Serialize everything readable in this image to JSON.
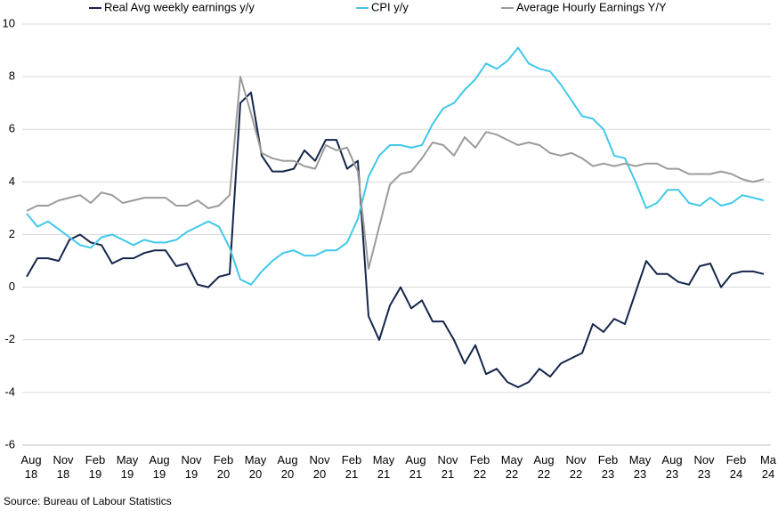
{
  "chart_data": {
    "type": "line",
    "categories": [
      "Aug 18",
      null,
      null,
      "Nov 18",
      null,
      null,
      "Feb 19",
      null,
      null,
      "May 19",
      null,
      null,
      "Aug 19",
      null,
      null,
      "Nov 19",
      null,
      null,
      "Feb 20",
      null,
      null,
      "May 20",
      null,
      null,
      "Aug 20",
      null,
      null,
      "Nov 20",
      null,
      null,
      "Feb 21",
      null,
      null,
      "May 21",
      null,
      null,
      "Aug 21",
      null,
      null,
      "Nov 21",
      null,
      null,
      "Feb 22",
      null,
      null,
      "May 22",
      null,
      null,
      "Aug 22",
      null,
      null,
      "Nov 22",
      null,
      null,
      "Feb 23",
      null,
      null,
      "May 23",
      null,
      null,
      "Aug 23",
      null,
      null,
      "Nov 23",
      null,
      null,
      "Feb 24",
      null,
      null,
      "Ma 24"
    ],
    "series": [
      {
        "name": "Real Avg weekly earnings y/y",
        "color": "#14264a",
        "values": [
          0.4,
          1.1,
          1.1,
          1.0,
          1.8,
          2.0,
          1.7,
          1.6,
          0.9,
          1.1,
          1.1,
          1.3,
          1.4,
          1.4,
          0.8,
          0.9,
          0.1,
          0.0,
          0.4,
          0.5,
          7.0,
          7.4,
          5.0,
          4.4,
          4.4,
          4.5,
          5.2,
          4.8,
          5.6,
          5.6,
          4.5,
          4.8,
          -1.1,
          -2.0,
          -0.7,
          0.0,
          -0.8,
          -0.5,
          -1.3,
          -1.3,
          -2.0,
          -2.9,
          -2.2,
          -3.3,
          -3.1,
          -3.6,
          -3.8,
          -3.6,
          -3.1,
          -3.4,
          -2.9,
          -2.7,
          -2.5,
          -1.4,
          -1.7,
          -1.2,
          -1.4,
          -0.2,
          1.0,
          0.5,
          0.5,
          0.2,
          0.1,
          0.8,
          0.9,
          0.0,
          0.5,
          0.6,
          0.6,
          0.5
        ]
      },
      {
        "name": "CPI y/y",
        "color": "#41c8ea",
        "values": [
          2.8,
          2.3,
          2.5,
          2.2,
          1.9,
          1.6,
          1.5,
          1.9,
          2.0,
          1.8,
          1.6,
          1.8,
          1.7,
          1.7,
          1.8,
          2.1,
          2.3,
          2.5,
          2.3,
          1.5,
          0.3,
          0.1,
          0.6,
          1.0,
          1.3,
          1.4,
          1.2,
          1.2,
          1.4,
          1.4,
          1.7,
          2.6,
          4.2,
          5.0,
          5.4,
          5.4,
          5.3,
          5.4,
          6.2,
          6.8,
          7.0,
          7.5,
          7.9,
          8.5,
          8.3,
          8.6,
          9.1,
          8.5,
          8.3,
          8.2,
          7.7,
          7.1,
          6.5,
          6.4,
          6.0,
          5.0,
          4.9,
          4.0,
          3.0,
          3.2,
          3.7,
          3.7,
          3.2,
          3.1,
          3.4,
          3.1,
          3.2,
          3.5,
          3.4,
          3.3
        ]
      },
      {
        "name": "Average Hourly Earnings Y/Y",
        "color": "#9b9b9b",
        "values": [
          2.9,
          3.1,
          3.1,
          3.3,
          3.4,
          3.5,
          3.2,
          3.6,
          3.5,
          3.2,
          3.3,
          3.4,
          3.4,
          3.4,
          3.1,
          3.1,
          3.3,
          3.0,
          3.1,
          3.5,
          8.0,
          6.6,
          5.1,
          4.9,
          4.8,
          4.8,
          4.6,
          4.5,
          5.4,
          5.2,
          5.3,
          4.4,
          0.7,
          2.3,
          3.9,
          4.3,
          4.4,
          4.9,
          5.5,
          5.4,
          5.0,
          5.7,
          5.3,
          5.9,
          5.8,
          5.6,
          5.4,
          5.5,
          5.4,
          5.1,
          5.0,
          5.1,
          4.9,
          4.6,
          4.7,
          4.6,
          4.7,
          4.6,
          4.7,
          4.7,
          4.5,
          4.5,
          4.3,
          4.3,
          4.3,
          4.4,
          4.3,
          4.1,
          4.0,
          4.1
        ]
      }
    ],
    "ylim": [
      -6,
      10
    ],
    "yticks": [
      -6,
      -4,
      -2,
      0,
      2,
      4,
      6,
      8,
      10
    ],
    "grid": true,
    "source": "Source: Bureau of Labour Statistics"
  }
}
